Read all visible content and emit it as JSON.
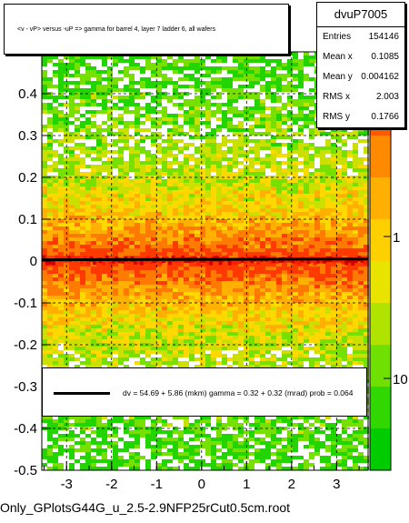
{
  "chart_data": {
    "type": "heatmap",
    "title": "<v - vP>       versus  -uP =>  gamma for barrel 4, layer 7 ladder 6, all wafers",
    "x_ticks": [
      "-3",
      "-2",
      "-1",
      "0",
      "1",
      "2",
      "3"
    ],
    "x_tick_values": [
      -3,
      -2,
      -1,
      0,
      1,
      2,
      3
    ],
    "y_ticks": [
      "-0.5",
      "-0.4",
      "-0.3",
      "-0.2",
      "-0.1",
      "0",
      "0.1",
      "0.2",
      "0.3",
      "0.4",
      "0.5"
    ],
    "y_tick_values": [
      -0.5,
      -0.4,
      -0.3,
      -0.2,
      -0.1,
      0,
      0.1,
      0.2,
      0.3,
      0.4,
      0.5
    ],
    "xlim": [
      -3.55,
      3.7
    ],
    "ylim": [
      -0.5,
      0.5
    ],
    "z_ticks": [
      "1",
      "10"
    ],
    "z_scale": "log",
    "grid": true,
    "profile_y": 0.002,
    "fit_line": {
      "y_at_xmin": 0.003,
      "y_at_xmax": 0.005
    },
    "colors": {
      "low": "#00cc00",
      "mid": "#ffcc00",
      "high": "#ff3300",
      "fit": "#000000"
    }
  },
  "stats": {
    "title": "dvuP7005",
    "rows": [
      {
        "key": "Entries",
        "value": "154146"
      },
      {
        "key": "Mean x",
        "value": "0.1085"
      },
      {
        "key": "Mean y",
        "value": "0.004162"
      },
      {
        "key": "RMS x",
        "value": "2.003"
      },
      {
        "key": "RMS y",
        "value": "0.1766"
      }
    ]
  },
  "fit_legend": {
    "text": "dv =   54.69 +   5.86 (mkm) gamma =    0.32 +   0.32 (mrad) prob = 0.064"
  },
  "footer": {
    "filename": "Only_GPlotsG44G_u_2.5-2.9NFP25rCut0.5cm.root"
  }
}
